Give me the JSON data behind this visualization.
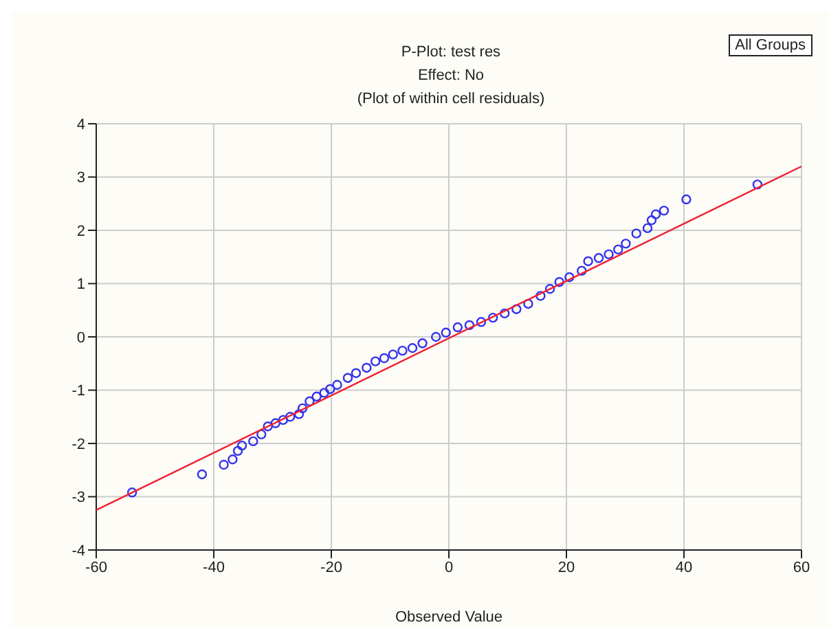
{
  "chart_data": {
    "type": "scatter",
    "title": "P-Plot: test res\nEffect: No\n(Plot of within cell residuals)",
    "xlabel": "Observed Value",
    "annotations": [
      "All Groups"
    ],
    "xlim": [
      -60,
      60
    ],
    "xticks": [
      -60,
      -40,
      -20,
      0,
      20,
      40,
      60
    ],
    "ylim": [
      -4,
      4
    ],
    "yticks": [
      -4,
      -3,
      -2,
      -1,
      0,
      1,
      2,
      3,
      4
    ],
    "grid": true,
    "marker": "circle",
    "series": [
      {
        "type": "scatter",
        "color": "#3333ee",
        "x": [
          -53.9,
          -42,
          -38.3,
          -36.8,
          -35.9,
          -35.2,
          -33.3,
          -31.9,
          -30.8,
          -29.5,
          -28.2,
          -27,
          -25.5,
          -24.9,
          -23.7,
          -22.5,
          -21.2,
          -20.2,
          -19,
          -17.2,
          -15.8,
          -14,
          -12.5,
          -11,
          -9.5,
          -7.9,
          -6.2,
          -4.5,
          -2.2,
          -0.5,
          1.5,
          3.5,
          5.5,
          7.5,
          9.5,
          11.5,
          13.5,
          15.6,
          17.2,
          18.8,
          20.5,
          22.6,
          23.7,
          25.5,
          27.2,
          28.8,
          30.1,
          31.9,
          33.8,
          34.5,
          35.2,
          36.6,
          40.4,
          52.5
        ],
        "values": [
          -2.92,
          -2.58,
          -2.4,
          -2.3,
          -2.14,
          -2.04,
          -1.96,
          -1.83,
          -1.68,
          -1.62,
          -1.56,
          -1.5,
          -1.45,
          -1.34,
          -1.21,
          -1.12,
          -1.05,
          -0.98,
          -0.9,
          -0.77,
          -0.68,
          -0.58,
          -0.46,
          -0.4,
          -0.33,
          -0.26,
          -0.21,
          -0.12,
          0,
          0.08,
          0.18,
          0.22,
          0.28,
          0.36,
          0.44,
          0.52,
          0.62,
          0.77,
          0.9,
          1.03,
          1.12,
          1.24,
          1.42,
          1.48,
          1.55,
          1.64,
          1.75,
          1.94,
          2.04,
          2.19,
          2.3,
          2.37,
          2.58,
          2.86
        ]
      },
      {
        "type": "line",
        "color": "#ee2233",
        "marker": "none",
        "x": [
          -60,
          60
        ],
        "values": [
          -3.25,
          3.2
        ]
      }
    ]
  }
}
